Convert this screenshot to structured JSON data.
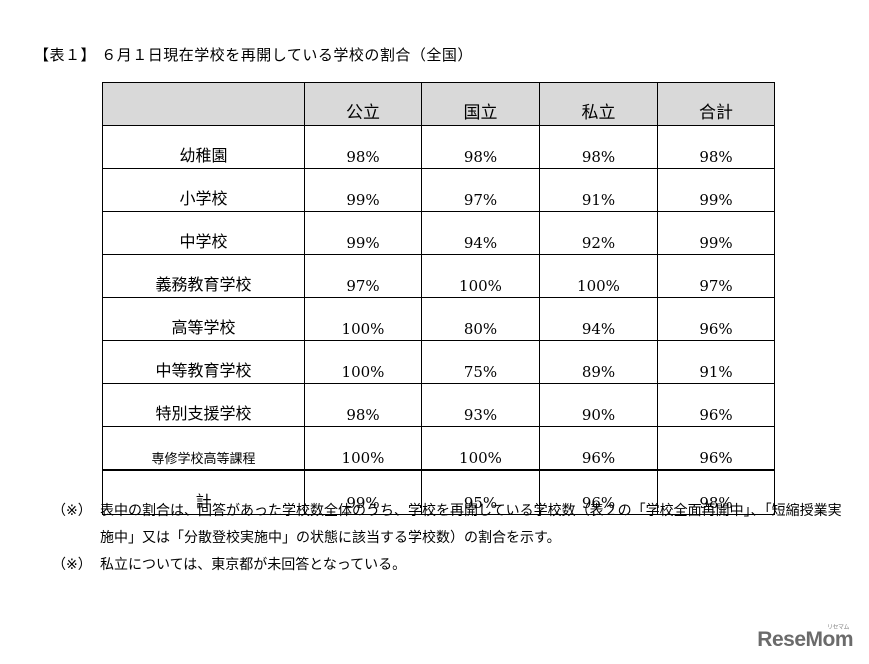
{
  "title": "【表１】 ６月１日現在学校を再開している学校の割合（全国）",
  "table": {
    "headers": [
      "",
      "公立",
      "国立",
      "私立",
      "合計"
    ],
    "rows": [
      {
        "label": "幼稚園",
        "values": [
          "98%",
          "98%",
          "98%",
          "98%"
        ]
      },
      {
        "label": "小学校",
        "values": [
          "99%",
          "97%",
          "91%",
          "99%"
        ]
      },
      {
        "label": "中学校",
        "values": [
          "99%",
          "94%",
          "92%",
          "99%"
        ]
      },
      {
        "label": "義務教育学校",
        "values": [
          "97%",
          "100%",
          "100%",
          "97%"
        ]
      },
      {
        "label": "高等学校",
        "values": [
          "100%",
          "80%",
          "94%",
          "96%"
        ]
      },
      {
        "label": "中等教育学校",
        "values": [
          "100%",
          "75%",
          "89%",
          "91%"
        ]
      },
      {
        "label": "特別支援学校",
        "values": [
          "98%",
          "93%",
          "90%",
          "96%"
        ]
      },
      {
        "label": "専修学校高等課程",
        "values": [
          "100%",
          "100%",
          "96%",
          "96%"
        ]
      }
    ],
    "total": {
      "label": "計",
      "values": [
        "99%",
        "95%",
        "96%",
        "98%"
      ]
    }
  },
  "notes": [
    {
      "mark": "（※）",
      "text": "表中の割合は、回答があった学校数全体のうち、学校を再開している学校数（表２の「学校全面再開中」、「短縮授業実施中」又は「分散登校実施中」の状態に該当する学校数）の割合を示す。"
    },
    {
      "mark": "（※）",
      "text": "私立については、東京都が未回答となっている。"
    }
  ],
  "logo": {
    "text": "ReseMom",
    "subtext": "リセマム"
  },
  "colors": {
    "header_bg": "#d9d9d9",
    "logo": "#6b6b6b"
  }
}
